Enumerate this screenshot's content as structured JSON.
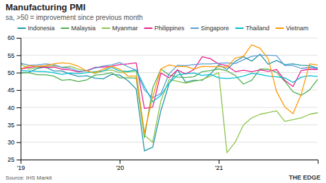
{
  "chart_data": {
    "type": "line",
    "title": "Manufacturing PMI",
    "subtitle": "sa, >50 = improvement since previous month",
    "source": "Source: IHS Markit",
    "annotations": [
      "THE EDGE"
    ],
    "categories": [
      "'19",
      null,
      null,
      null,
      null,
      null,
      null,
      null,
      null,
      null,
      null,
      null,
      "'20",
      null,
      null,
      null,
      null,
      null,
      null,
      null,
      null,
      null,
      null,
      null,
      "'21",
      null,
      null,
      null,
      null,
      null,
      null,
      null,
      null,
      null,
      null,
      null,
      null
    ],
    "series": [
      {
        "name": "Indonesia",
        "color": "#2196a8",
        "values": [
          50.0,
          50.1,
          51.2,
          51.6,
          50.5,
          50.5,
          49.6,
          48.9,
          49.1,
          48.4,
          48.2,
          49.5,
          49.3,
          47.7,
          45.3,
          27.5,
          28.6,
          39.1,
          46.9,
          50.8,
          47.2,
          47.8,
          47.8,
          49.6,
          52.2,
          50.9,
          53.2,
          54.6,
          53.3,
          55.3,
          52.4,
          53.5,
          52.3,
          52.5,
          52.1,
          52.0,
          51.3
        ]
      },
      {
        "name": "Malaysia",
        "color": "#4caf50",
        "values": [
          49.9,
          50.0,
          49.4,
          49.4,
          49.0,
          47.8,
          48.0,
          47.4,
          47.9,
          49.3,
          49.5,
          50.0,
          48.5,
          48.5,
          48.4,
          31.3,
          45.6,
          51.0,
          49.3,
          48.7,
          48.6,
          48.8,
          50.3,
          50.6,
          51.1,
          50.5,
          49.2,
          46.7,
          47.8,
          51.0,
          51.0,
          50.1,
          47.5,
          44.5,
          43.5,
          45.0,
          48.1
        ]
      },
      {
        "name": "Myanmar",
        "color": "#8bc34a",
        "values": [
          52.6,
          51.0,
          51.5,
          51.8,
          52.0,
          51.5,
          51.8,
          51.0,
          50.5,
          49.8,
          50.5,
          50.8,
          50.0,
          50.2,
          50.5,
          32.0,
          30.0,
          42.0,
          48.0,
          47.5,
          47.0,
          47.5,
          48.0,
          49.0,
          50.0,
          27.0,
          30.0,
          35.0,
          37.0,
          38.0,
          38.5,
          39.0,
          36.0,
          36.5,
          37.0,
          38.0,
          38.5
        ]
      },
      {
        "name": "Philippines",
        "color": "#e91e8c",
        "values": [
          51.0,
          51.5,
          51.8,
          51.5,
          51.6,
          51.0,
          50.8,
          50.2,
          50.6,
          51.5,
          51.6,
          51.8,
          52.3,
          52.5,
          52.8,
          39.7,
          40.1,
          49.9,
          48.5,
          50.8,
          49.6,
          50.9,
          54.6,
          54.0,
          52.5,
          52.0,
          50.3,
          50.7,
          50.3,
          50.8,
          50.4,
          50.9,
          47.8,
          46.0,
          50.6,
          51.0,
          50.9
        ]
      },
      {
        "name": "Singapore",
        "color": "#5b9bd5",
        "values": [
          52.7,
          52.1,
          52.2,
          52.5,
          52.3,
          51.5,
          51.3,
          50.4,
          50.5,
          51.3,
          51.9,
          52.2,
          52.9,
          51.7,
          50.7,
          45.0,
          42.8,
          44.0,
          49.7,
          52.1,
          52.0,
          52.3,
          52.5,
          52.5,
          52.7,
          52.8,
          52.6,
          53.7,
          54.7,
          55.0,
          55.0,
          54.9,
          52.0,
          52.0,
          51.2,
          51.5,
          51.2
        ]
      },
      {
        "name": "Thailand",
        "color": "#00bcd4",
        "values": [
          50.6,
          50.5,
          50.4,
          50.3,
          50.0,
          49.5,
          49.9,
          49.7,
          50.0,
          50.3,
          50.5,
          51.5,
          50.5,
          50.4,
          50.8,
          46.0,
          41.6,
          43.5,
          47.0,
          49.3,
          49.7,
          49.9,
          49.2,
          49.5,
          48.5,
          48.3,
          48.5,
          49.0,
          49.8,
          49.5,
          49.0,
          48.8,
          48.5,
          47.2,
          48.7,
          49.1,
          48.9
        ]
      },
      {
        "name": "Vietnam",
        "color": "#ff9800",
        "values": [
          51.0,
          52.0,
          51.8,
          52.0,
          52.5,
          52.8,
          52.6,
          51.8,
          50.5,
          50.0,
          51.0,
          51.8,
          51.0,
          49.0,
          49.0,
          32.7,
          43.0,
          51.1,
          52.2,
          51.7,
          51.8,
          51.0,
          51.8,
          51.7,
          51.7,
          51.6,
          54.2,
          54.7,
          58.0,
          57.0,
          54.0,
          44.6,
          40.2,
          38.2,
          43.8,
          52.5,
          52.2
        ]
      }
    ],
    "ylim": [
      25,
      60
    ],
    "yticks": [
      25,
      30,
      35,
      40,
      45,
      50,
      55,
      60
    ],
    "grid": true,
    "legend": "top"
  }
}
